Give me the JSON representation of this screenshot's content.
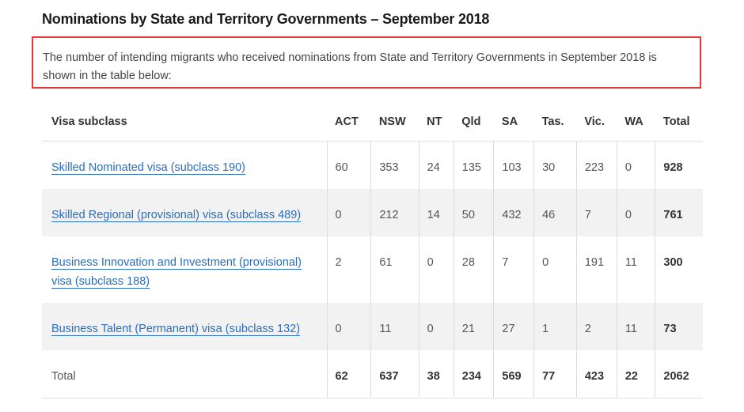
{
  "heading": "Nominations by State and Territory Governments – September 2018",
  "intro": "The number of intending migrants who received nominations from State and Territory Governments in September 2018 is shown in the table below:",
  "table": {
    "headers": [
      "Visa subclass",
      "ACT",
      "NSW",
      "NT",
      "Qld",
      "SA",
      "Tas.",
      "Vic.",
      "WA",
      "Total"
    ],
    "rows": [
      {
        "visa": "Skilled Nominated visa (subclass 190)",
        "values": [
          "60",
          "353",
          "24",
          "135",
          "103",
          "30",
          "223",
          "0"
        ],
        "total": "928"
      },
      {
        "visa": "Skilled Regional (provisional) visa (subclass 489)",
        "values": [
          "0",
          "212",
          "14",
          "50",
          "432",
          "46",
          "7",
          "0"
        ],
        "total": "761"
      },
      {
        "visa": "Business Innovation and Investment (provisional) visa (subclass 188)",
        "values": [
          "2",
          "61",
          "0",
          "28",
          "7",
          "0",
          "191",
          "11"
        ],
        "total": "300"
      },
      {
        "visa": "Business Talent (Permanent) visa (subclass 132)",
        "values": [
          "0",
          "11",
          "0",
          "21",
          "27",
          "1",
          "2",
          "11"
        ],
        "total": "73"
      }
    ],
    "total_row": {
      "label": "Total",
      "values": [
        "62",
        "637",
        "38",
        "234",
        "569",
        "77",
        "423",
        "22"
      ],
      "total": "2062"
    }
  },
  "colors": {
    "link": "#2a6ebb",
    "highlight_border": "#e53935",
    "stripe": "#f2f2f2"
  }
}
